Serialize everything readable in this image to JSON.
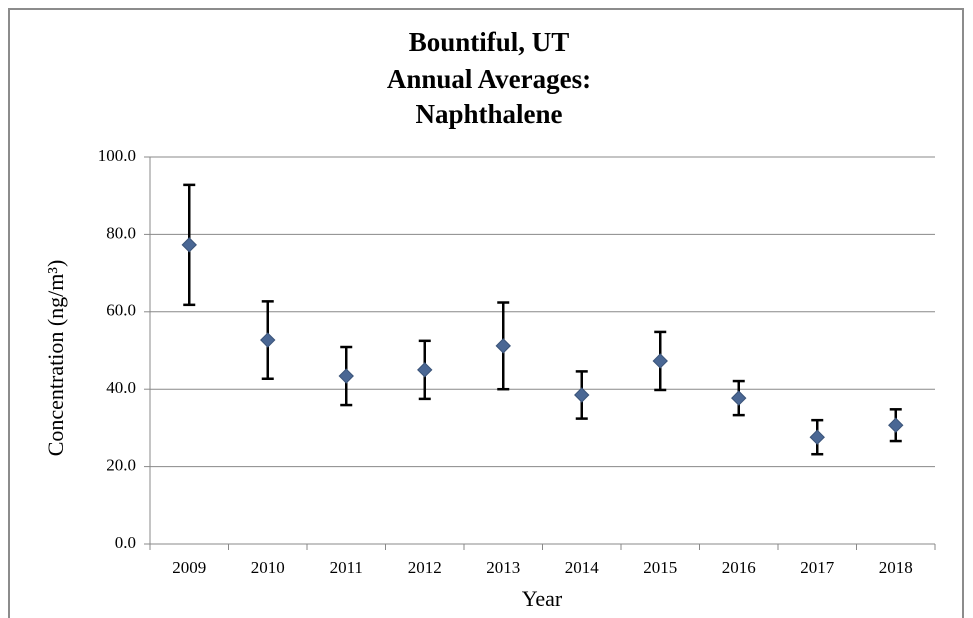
{
  "chart_data": {
    "type": "errorbar",
    "title": [
      "Bountiful, UT",
      "Annual Averages:",
      "Naphthalene"
    ],
    "x_label": "Year",
    "y_label": "Concentration (ng/m³)",
    "categories": [
      "2009",
      "2010",
      "2011",
      "2012",
      "2013",
      "2014",
      "2015",
      "2016",
      "2017",
      "2018"
    ],
    "values": [
      77.3,
      52.7,
      43.4,
      45.0,
      51.2,
      38.5,
      47.3,
      37.7,
      27.6,
      30.7
    ],
    "errors": [
      15.5,
      10.0,
      7.5,
      7.5,
      11.2,
      6.1,
      7.5,
      4.4,
      4.4,
      4.1
    ],
    "color": "#4a6794",
    "ylim": [
      0,
      100
    ],
    "yticks": [
      {
        "value": 0,
        "label": "0.0"
      },
      {
        "value": 20,
        "label": "20.0"
      },
      {
        "value": 40,
        "label": "40.0"
      },
      {
        "value": 60,
        "label": "60.0"
      },
      {
        "value": 80,
        "label": "80.0"
      },
      {
        "value": 100,
        "label": "100.0"
      }
    ],
    "grid": true
  }
}
